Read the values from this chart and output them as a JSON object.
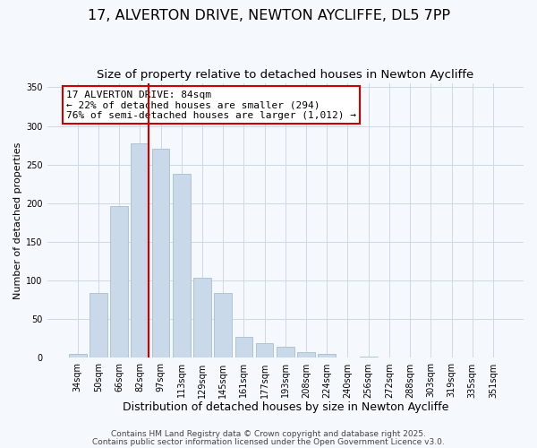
{
  "title": "17, ALVERTON DRIVE, NEWTON AYCLIFFE, DL5 7PP",
  "subtitle": "Size of property relative to detached houses in Newton Aycliffe",
  "xlabel": "Distribution of detached houses by size in Newton Aycliffe",
  "ylabel": "Number of detached properties",
  "bar_labels": [
    "34sqm",
    "50sqm",
    "66sqm",
    "82sqm",
    "97sqm",
    "113sqm",
    "129sqm",
    "145sqm",
    "161sqm",
    "177sqm",
    "193sqm",
    "208sqm",
    "224sqm",
    "240sqm",
    "256sqm",
    "272sqm",
    "288sqm",
    "303sqm",
    "319sqm",
    "335sqm",
    "351sqm"
  ],
  "bar_values": [
    5,
    84,
    196,
    278,
    270,
    238,
    104,
    84,
    27,
    19,
    15,
    8,
    5,
    0,
    2,
    0,
    0,
    1,
    0,
    0,
    1
  ],
  "bar_color": "#c9d9ea",
  "bar_edge_color": "#a8bece",
  "vline_color": "#cc0000",
  "annotation_box_text": "17 ALVERTON DRIVE: 84sqm\n← 22% of detached houses are smaller (294)\n76% of semi-detached houses are larger (1,012) →",
  "box_edge_color": "#cc0000",
  "ylim": [
    0,
    355
  ],
  "yticks": [
    0,
    50,
    100,
    150,
    200,
    250,
    300,
    350
  ],
  "footer1": "Contains HM Land Registry data © Crown copyright and database right 2025.",
  "footer2": "Contains public sector information licensed under the Open Government Licence v3.0.",
  "background_color": "#f5f8fc",
  "grid_color": "#cdd9e5",
  "title_fontsize": 11.5,
  "subtitle_fontsize": 9.5,
  "xlabel_fontsize": 9,
  "ylabel_fontsize": 8,
  "tick_fontsize": 7,
  "annotation_fontsize": 8,
  "footer_fontsize": 6.5
}
